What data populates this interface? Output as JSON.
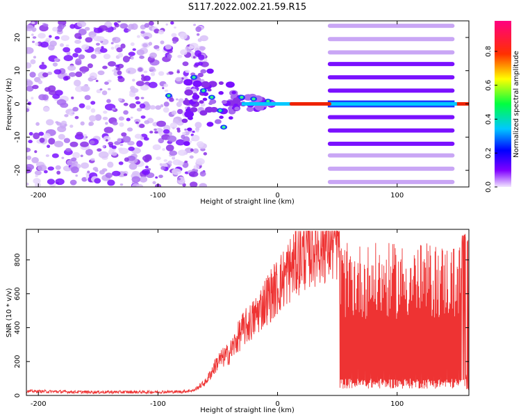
{
  "title": "S117.2022.002.21.59.R15",
  "colorbar": {
    "label": "Normalized spectral amplitude",
    "ticks": [
      "0.0",
      "0.2",
      "0.4",
      "0.6",
      "0.8"
    ],
    "tick_values": [
      0.0,
      0.2,
      0.4,
      0.6,
      0.8
    ],
    "range": [
      0,
      0.98
    ]
  },
  "chart_data": [
    {
      "type": "heatmap",
      "title": "S117.2022.002.21.59.R15",
      "xlabel": "Height of straight line (km)",
      "ylabel": "Frequency (Hz)",
      "xlim": [
        -210,
        160
      ],
      "ylim": [
        -25,
        25
      ],
      "x_ticks": [
        "-200",
        "-100",
        "0",
        "100"
      ],
      "x_tick_values": [
        -200,
        -100,
        0,
        100
      ],
      "y_ticks": [
        "-20",
        "-10",
        "0",
        "10",
        "20"
      ],
      "y_tick_values": [
        -20,
        -10,
        0,
        10,
        20
      ],
      "colormap": "rainbow (purple-blue-cyan-green-yellow-red-magenta)",
      "features": {
        "noise_region_x": [
          -210,
          -70
        ],
        "converging_segment_x": [
          -70,
          0
        ],
        "carrier_line_frequency": 0,
        "carrier_strong_x": [
          10,
          45
        ],
        "harmonic_bands_x": [
          42,
          148
        ],
        "harmonic_band_frequencies": [
          -23.5,
          -19.5,
          -15.5,
          -12,
          -8,
          -4,
          0,
          4,
          8,
          12,
          15.5,
          19.5,
          23.5
        ]
      }
    },
    {
      "type": "line",
      "xlabel": "Height of straight line (km)",
      "ylabel": "SNR (10 * v/v)",
      "xlim": [
        -210,
        160
      ],
      "ylim": [
        0,
        980
      ],
      "x_ticks": [
        "-200",
        "-100",
        "0",
        "100"
      ],
      "x_tick_values": [
        -200,
        -100,
        0,
        100
      ],
      "y_ticks": [
        "0",
        "200",
        "400",
        "600",
        "800"
      ],
      "y_tick_values": [
        0,
        200,
        400,
        600,
        800
      ],
      "color": "#ee3333",
      "series_profile": {
        "x": [
          -210,
          -160,
          -110,
          -80,
          -70,
          -60,
          -50,
          -40,
          -30,
          -20,
          -10,
          0,
          10,
          20,
          30,
          40,
          50,
          53,
          60,
          80,
          100,
          120,
          140,
          150,
          155,
          160
        ],
        "y": [
          25,
          20,
          20,
          22,
          30,
          80,
          200,
          250,
          380,
          450,
          560,
          640,
          740,
          830,
          880,
          900,
          910,
          910,
          300,
          320,
          310,
          300,
          320,
          250,
          920,
          940
        ]
      }
    }
  ]
}
